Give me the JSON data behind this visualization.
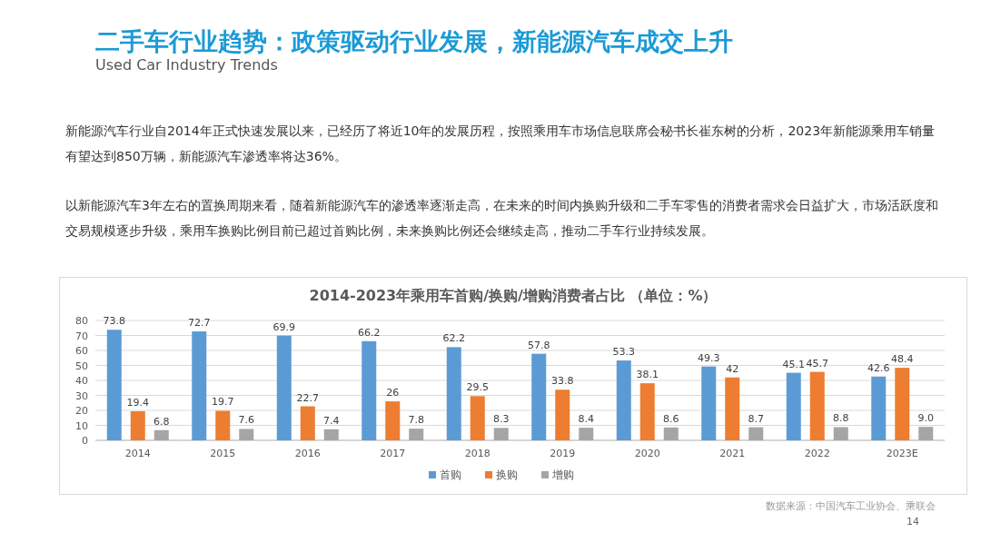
{
  "chart_data": {
    "type": "bar",
    "title": "2014-2023年乘用车首购/换购/增购消费者占比 （单位：%）",
    "categories": [
      "2014",
      "2015",
      "2016",
      "2017",
      "2018",
      "2019",
      "2020",
      "2021",
      "2022",
      "2023E"
    ],
    "series": [
      {
        "name": "首购",
        "color": "#5b9bd5",
        "values": [
          73.8,
          72.7,
          69.9,
          66.2,
          62.2,
          57.8,
          53.3,
          49.3,
          45.1,
          42.6
        ],
        "value_labels": [
          "73.8",
          "72.7",
          "69.9",
          "66.2",
          "62.2",
          "57.8",
          "53.3",
          "49.3",
          "45.1",
          "42.6"
        ]
      },
      {
        "name": "换购",
        "color": "#ed7d31",
        "values": [
          19.4,
          19.7,
          22.7,
          26,
          29.5,
          33.8,
          38.1,
          42,
          45.7,
          48.4
        ],
        "value_labels": [
          "19.4",
          "19.7",
          "22.7",
          "26",
          "29.5",
          "33.8",
          "38.1",
          "42",
          "45.7",
          "48.4"
        ]
      },
      {
        "name": "增购",
        "color": "#a5a5a5",
        "values": [
          6.8,
          7.6,
          7.4,
          7.8,
          8.3,
          8.4,
          8.6,
          8.7,
          8.8,
          9.0
        ],
        "value_labels": [
          "6.8",
          "7.6",
          "7.4",
          "7.8",
          "8.3",
          "8.4",
          "8.6",
          "8.7",
          "8.8",
          "9.0"
        ]
      }
    ],
    "ylim": [
      0,
      80
    ],
    "yticks": [
      0,
      10,
      20,
      30,
      40,
      50,
      60,
      70,
      80
    ],
    "grid": "y",
    "legend": "bottom",
    "annotations": [
      "二手车行业趋势：政策驱动行业发展，新能源汽车成交上升",
      "Used Car Industry Trends",
      "新能源汽车行业自2014年正式快速发展以来，已经历了将近10年的发展历程，按照乘用车市场信息联席会秘书长崔东树的分析，2023年新能源乘用车销量有望达到850万辆，新能源汽车渗透率将达36%。",
      "以新能源汽车3年左右的置换周期来看，随着新能源汽车的渗透率逐渐走高，在未来的时间内换购升级和二手车零售的消费者需求会日益扩大，市场活跃度和交易规模逐步升级，乘用车换购比例目前已超过首购比例，未来换购比例还会继续走高，推动二手车行业持续发展。",
      "数据来源：中国汽车工业协会、乘联会",
      "14"
    ]
  }
}
